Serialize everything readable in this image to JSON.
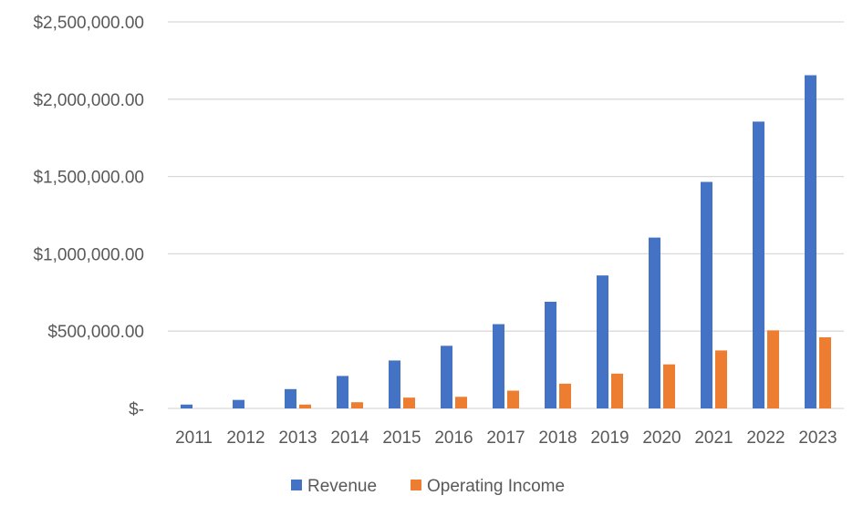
{
  "chart_data": {
    "type": "bar",
    "categories": [
      "2011",
      "2012",
      "2013",
      "2014",
      "2015",
      "2016",
      "2017",
      "2018",
      "2019",
      "2020",
      "2021",
      "2022",
      "2023"
    ],
    "series": [
      {
        "name": "Revenue",
        "color": "#4472C4",
        "values": [
          25000,
          55000,
          125000,
          210000,
          310000,
          405000,
          545000,
          690000,
          860000,
          1105000,
          1465000,
          1855000,
          2155000
        ]
      },
      {
        "name": "Operating Income",
        "color": "#ED7D31",
        "values": [
          0,
          0,
          25000,
          40000,
          70000,
          75000,
          115000,
          160000,
          225000,
          285000,
          375000,
          505000,
          460000
        ]
      }
    ],
    "ylim": [
      0,
      2500000
    ],
    "yticks": [
      {
        "value": 0,
        "label": "$-"
      },
      {
        "value": 500000,
        "label": "$500,000.00"
      },
      {
        "value": 1000000,
        "label": "$1,000,000.00"
      },
      {
        "value": 1500000,
        "label": "$1,500,000.00"
      },
      {
        "value": 2000000,
        "label": "$2,000,000.00"
      },
      {
        "value": 2500000,
        "label": "$2,500,000.00"
      }
    ],
    "grid": true,
    "legend": "bottom-center"
  }
}
